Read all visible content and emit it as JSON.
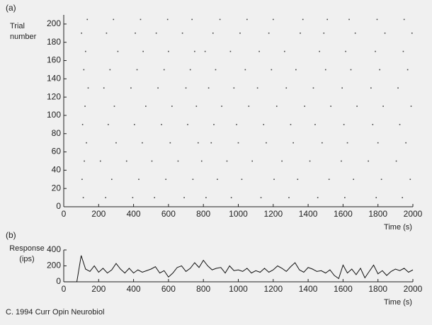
{
  "chart_data": [
    {
      "type": "raster",
      "panel_label": "(a)",
      "ylabel": "Trial number",
      "xlabel": "Time (s)",
      "color": "#444444",
      "xlim": [
        0,
        2000
      ],
      "xticks": [
        0,
        200,
        400,
        600,
        800,
        1000,
        1200,
        1400,
        1600,
        1800,
        2000
      ],
      "ylim": [
        0,
        210
      ],
      "yticks": [
        0,
        20,
        40,
        60,
        80,
        100,
        120,
        140,
        160,
        180,
        200
      ],
      "series": [
        {
          "y": 10,
          "x": [
            112,
            240,
            395,
            520,
            690,
            815,
            960,
            1130,
            1290,
            1455,
            1610,
            1790,
            1940
          ]
        },
        {
          "y": 30,
          "x": [
            105,
            275,
            430,
            585,
            740,
            880,
            1020,
            1205,
            1340,
            1520,
            1660,
            1820,
            1985
          ]
        },
        {
          "y": 50,
          "x": [
            118,
            210,
            360,
            505,
            655,
            790,
            935,
            1080,
            1250,
            1410,
            1590,
            1745,
            1905
          ]
        },
        {
          "y": 70,
          "x": [
            130,
            300,
            450,
            610,
            770,
            845,
            1000,
            1160,
            1315,
            1480,
            1625,
            1800,
            1960
          ]
        },
        {
          "y": 90,
          "x": [
            108,
            255,
            405,
            560,
            710,
            860,
            990,
            1145,
            1300,
            1440,
            1605,
            1770,
            1925
          ]
        },
        {
          "y": 110,
          "x": [
            122,
            290,
            470,
            620,
            760,
            905,
            1060,
            1220,
            1380,
            1530,
            1680,
            1830,
            1990
          ]
        },
        {
          "y": 130,
          "x": [
            140,
            230,
            385,
            540,
            700,
            830,
            975,
            1110,
            1275,
            1430,
            1595,
            1760,
            1915
          ]
        },
        {
          "y": 150,
          "x": [
            115,
            265,
            420,
            575,
            725,
            870,
            1040,
            1190,
            1330,
            1500,
            1645,
            1810,
            1970
          ]
        },
        {
          "y": 170,
          "x": [
            125,
            310,
            455,
            600,
            750,
            810,
            955,
            1120,
            1265,
            1465,
            1615,
            1785,
            1945
          ]
        },
        {
          "y": 190,
          "x": [
            102,
            245,
            410,
            530,
            680,
            855,
            1010,
            1175,
            1355,
            1490,
            1670,
            1840,
            1995
          ]
        },
        {
          "y": 205,
          "x": [
            135,
            285,
            440,
            595,
            735,
            895,
            1050,
            1200,
            1370,
            1510,
            1635,
            1795,
            1950
          ]
        }
      ]
    },
    {
      "type": "line",
      "panel_label": "(b)",
      "ylabel": "Response (ips)",
      "xlabel": "Time (s)",
      "color": "#111111",
      "xlim": [
        0,
        2000
      ],
      "xticks": [
        0,
        200,
        400,
        600,
        800,
        1000,
        1200,
        1400,
        1600,
        1800,
        2000
      ],
      "ylim": [
        0,
        400
      ],
      "yticks": [
        0,
        200,
        400
      ],
      "x": [
        0,
        25,
        50,
        75,
        100,
        125,
        150,
        175,
        200,
        225,
        250,
        275,
        300,
        325,
        350,
        375,
        400,
        425,
        450,
        475,
        500,
        525,
        550,
        575,
        600,
        625,
        650,
        675,
        700,
        725,
        750,
        775,
        800,
        825,
        850,
        875,
        900,
        925,
        950,
        975,
        1000,
        1025,
        1050,
        1075,
        1100,
        1125,
        1150,
        1175,
        1200,
        1225,
        1250,
        1275,
        1300,
        1325,
        1350,
        1375,
        1400,
        1425,
        1450,
        1475,
        1500,
        1525,
        1550,
        1575,
        1600,
        1625,
        1650,
        1675,
        1700,
        1725,
        1750,
        1775,
        1800,
        1825,
        1850,
        1875,
        1900,
        1925,
        1950,
        1975,
        2000
      ],
      "values": [
        0,
        0,
        0,
        0,
        330,
        160,
        130,
        200,
        120,
        170,
        110,
        150,
        230,
        160,
        110,
        170,
        110,
        150,
        120,
        140,
        160,
        190,
        110,
        140,
        60,
        110,
        180,
        200,
        130,
        170,
        240,
        180,
        270,
        200,
        150,
        170,
        180,
        110,
        200,
        140,
        150,
        130,
        170,
        110,
        140,
        120,
        170,
        120,
        150,
        200,
        170,
        130,
        190,
        240,
        150,
        120,
        180,
        160,
        130,
        140,
        110,
        150,
        80,
        40,
        210,
        110,
        160,
        90,
        170,
        50,
        130,
        210,
        100,
        140,
        80,
        130,
        160,
        140,
        170,
        120,
        150
      ]
    }
  ],
  "footer": "C. 1994 Curr Opin Neurobiol"
}
